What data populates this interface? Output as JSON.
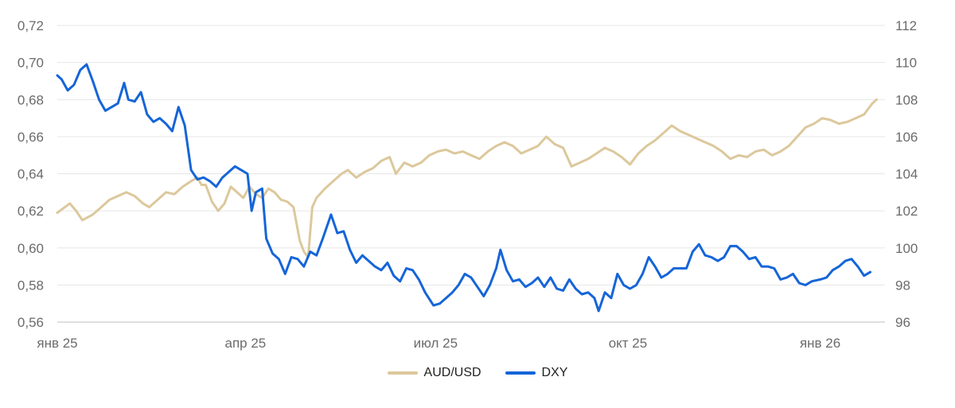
{
  "chart_data": {
    "type": "line",
    "title": "",
    "x_ticks": [
      "янв 25",
      "апр 25",
      "июл 25",
      "окт 25",
      "янв 26"
    ],
    "x_range": [
      "2025-01-01",
      "2026-02-01"
    ],
    "y_left": {
      "ticks": [
        "0,72",
        "0,70",
        "0,68",
        "0,66",
        "0,64",
        "0,62",
        "0,60",
        "0,58",
        "0,56"
      ],
      "range": [
        0.56,
        0.72
      ]
    },
    "y_right": {
      "ticks": [
        "112",
        "110",
        "108",
        "106",
        "104",
        "102",
        "100",
        "98",
        "96"
      ],
      "range": [
        96,
        112
      ]
    },
    "grid": "horizontal",
    "legend_position": "bottom",
    "series": [
      {
        "name": "AUD/USD",
        "axis": "left",
        "color": "#dcc89c",
        "points": [
          [
            "2025-01-01",
            0.619
          ],
          [
            "2025-01-07",
            0.624
          ],
          [
            "2025-01-10",
            0.62
          ],
          [
            "2025-01-13",
            0.615
          ],
          [
            "2025-01-18",
            0.618
          ],
          [
            "2025-01-22",
            0.622
          ],
          [
            "2025-01-26",
            0.626
          ],
          [
            "2025-01-30",
            0.628
          ],
          [
            "2025-02-03",
            0.63
          ],
          [
            "2025-02-07",
            0.628
          ],
          [
            "2025-02-11",
            0.624
          ],
          [
            "2025-02-14",
            0.622
          ],
          [
            "2025-02-18",
            0.626
          ],
          [
            "2025-02-22",
            0.63
          ],
          [
            "2025-02-26",
            0.629
          ],
          [
            "2025-03-02",
            0.633
          ],
          [
            "2025-03-06",
            0.636
          ],
          [
            "2025-03-09",
            0.638
          ],
          [
            "2025-03-11",
            0.634
          ],
          [
            "2025-03-13",
            0.634
          ],
          [
            "2025-03-16",
            0.625
          ],
          [
            "2025-03-19",
            0.62
          ],
          [
            "2025-03-22",
            0.624
          ],
          [
            "2025-03-25",
            0.633
          ],
          [
            "2025-03-28",
            0.63
          ],
          [
            "2025-03-31",
            0.627
          ],
          [
            "2025-04-03",
            0.633
          ],
          [
            "2025-04-06",
            0.629
          ],
          [
            "2025-04-09",
            0.627
          ],
          [
            "2025-04-12",
            0.632
          ],
          [
            "2025-04-15",
            0.63
          ],
          [
            "2025-04-18",
            0.626
          ],
          [
            "2025-04-21",
            0.625
          ],
          [
            "2025-04-24",
            0.622
          ],
          [
            "2025-04-27",
            0.604
          ],
          [
            "2025-04-29",
            0.598
          ],
          [
            "2025-05-01",
            0.595
          ],
          [
            "2025-05-03",
            0.622
          ],
          [
            "2025-05-05",
            0.627
          ],
          [
            "2025-05-09",
            0.632
          ],
          [
            "2025-05-13",
            0.636
          ],
          [
            "2025-05-17",
            0.64
          ],
          [
            "2025-05-20",
            0.642
          ],
          [
            "2025-05-24",
            0.638
          ],
          [
            "2025-05-28",
            0.641
          ],
          [
            "2025-06-01",
            0.643
          ],
          [
            "2025-06-05",
            0.647
          ],
          [
            "2025-06-09",
            0.649
          ],
          [
            "2025-06-12",
            0.64
          ],
          [
            "2025-06-16",
            0.646
          ],
          [
            "2025-06-20",
            0.644
          ],
          [
            "2025-06-24",
            0.646
          ],
          [
            "2025-06-28",
            0.65
          ],
          [
            "2025-07-02",
            0.652
          ],
          [
            "2025-07-06",
            0.653
          ],
          [
            "2025-07-10",
            0.651
          ],
          [
            "2025-07-14",
            0.652
          ],
          [
            "2025-07-18",
            0.65
          ],
          [
            "2025-07-22",
            0.648
          ],
          [
            "2025-07-26",
            0.652
          ],
          [
            "2025-07-30",
            0.655
          ],
          [
            "2025-08-03",
            0.657
          ],
          [
            "2025-08-07",
            0.655
          ],
          [
            "2025-08-11",
            0.651
          ],
          [
            "2025-08-15",
            0.653
          ],
          [
            "2025-08-19",
            0.655
          ],
          [
            "2025-08-23",
            0.66
          ],
          [
            "2025-08-27",
            0.656
          ],
          [
            "2025-08-31",
            0.654
          ],
          [
            "2025-09-04",
            0.644
          ],
          [
            "2025-09-08",
            0.646
          ],
          [
            "2025-09-12",
            0.648
          ],
          [
            "2025-09-16",
            0.651
          ],
          [
            "2025-09-20",
            0.654
          ],
          [
            "2025-09-24",
            0.652
          ],
          [
            "2025-09-28",
            0.649
          ],
          [
            "2025-10-02",
            0.645
          ],
          [
            "2025-10-06",
            0.651
          ],
          [
            "2025-10-10",
            0.655
          ],
          [
            "2025-10-14",
            0.658
          ],
          [
            "2025-10-18",
            0.662
          ],
          [
            "2025-10-22",
            0.666
          ],
          [
            "2025-10-26",
            0.663
          ],
          [
            "2025-10-30",
            0.661
          ],
          [
            "2025-11-03",
            0.659
          ],
          [
            "2025-11-07",
            0.657
          ],
          [
            "2025-11-11",
            0.655
          ],
          [
            "2025-11-15",
            0.652
          ],
          [
            "2025-11-19",
            0.648
          ],
          [
            "2025-11-23",
            0.65
          ],
          [
            "2025-11-27",
            0.649
          ],
          [
            "2025-12-01",
            0.652
          ],
          [
            "2025-12-05",
            0.653
          ],
          [
            "2025-12-09",
            0.65
          ],
          [
            "2025-12-13",
            0.652
          ],
          [
            "2025-12-17",
            0.655
          ],
          [
            "2025-12-21",
            0.66
          ],
          [
            "2025-12-25",
            0.665
          ],
          [
            "2025-12-29",
            0.667
          ],
          [
            "2026-01-02",
            0.67
          ],
          [
            "2026-01-06",
            0.669
          ],
          [
            "2026-01-10",
            0.667
          ],
          [
            "2026-01-14",
            0.668
          ],
          [
            "2026-01-18",
            0.67
          ],
          [
            "2026-01-22",
            0.672
          ],
          [
            "2026-01-26",
            0.678
          ],
          [
            "2026-01-28",
            0.68
          ]
        ]
      },
      {
        "name": "DXY",
        "axis": "right",
        "color": "#1565d8",
        "points": [
          [
            "2025-01-01",
            109.3
          ],
          [
            "2025-01-03",
            109.1
          ],
          [
            "2025-01-06",
            108.5
          ],
          [
            "2025-01-09",
            108.8
          ],
          [
            "2025-01-12",
            109.6
          ],
          [
            "2025-01-15",
            109.9
          ],
          [
            "2025-01-18",
            109.0
          ],
          [
            "2025-01-21",
            108.0
          ],
          [
            "2025-01-24",
            107.4
          ],
          [
            "2025-01-27",
            107.6
          ],
          [
            "2025-01-30",
            107.8
          ],
          [
            "2025-02-02",
            108.9
          ],
          [
            "2025-02-04",
            108.0
          ],
          [
            "2025-02-07",
            107.9
          ],
          [
            "2025-02-10",
            108.4
          ],
          [
            "2025-02-13",
            107.2
          ],
          [
            "2025-02-16",
            106.8
          ],
          [
            "2025-02-19",
            107.0
          ],
          [
            "2025-02-22",
            106.7
          ],
          [
            "2025-02-25",
            106.3
          ],
          [
            "2025-02-28",
            107.6
          ],
          [
            "2025-03-03",
            106.6
          ],
          [
            "2025-03-06",
            104.2
          ],
          [
            "2025-03-09",
            103.7
          ],
          [
            "2025-03-12",
            103.8
          ],
          [
            "2025-03-15",
            103.6
          ],
          [
            "2025-03-18",
            103.3
          ],
          [
            "2025-03-21",
            103.8
          ],
          [
            "2025-03-24",
            104.1
          ],
          [
            "2025-03-27",
            104.4
          ],
          [
            "2025-03-30",
            104.2
          ],
          [
            "2025-04-02",
            104.0
          ],
          [
            "2025-04-04",
            102.0
          ],
          [
            "2025-04-06",
            103.0
          ],
          [
            "2025-04-09",
            103.2
          ],
          [
            "2025-04-11",
            100.5
          ],
          [
            "2025-04-14",
            99.7
          ],
          [
            "2025-04-17",
            99.4
          ],
          [
            "2025-04-20",
            98.6
          ],
          [
            "2025-04-23",
            99.5
          ],
          [
            "2025-04-26",
            99.4
          ],
          [
            "2025-04-29",
            99.0
          ],
          [
            "2025-05-02",
            99.8
          ],
          [
            "2025-05-05",
            99.6
          ],
          [
            "2025-05-08",
            100.5
          ],
          [
            "2025-05-12",
            101.8
          ],
          [
            "2025-05-15",
            100.8
          ],
          [
            "2025-05-18",
            100.9
          ],
          [
            "2025-05-21",
            99.9
          ],
          [
            "2025-05-24",
            99.2
          ],
          [
            "2025-05-27",
            99.6
          ],
          [
            "2025-05-30",
            99.3
          ],
          [
            "2025-06-02",
            99.0
          ],
          [
            "2025-06-05",
            98.8
          ],
          [
            "2025-06-08",
            99.2
          ],
          [
            "2025-06-11",
            98.5
          ],
          [
            "2025-06-14",
            98.2
          ],
          [
            "2025-06-17",
            98.9
          ],
          [
            "2025-06-20",
            98.8
          ],
          [
            "2025-06-23",
            98.3
          ],
          [
            "2025-06-26",
            97.6
          ],
          [
            "2025-06-30",
            96.9
          ],
          [
            "2025-07-03",
            97.0
          ],
          [
            "2025-07-06",
            97.3
          ],
          [
            "2025-07-09",
            97.6
          ],
          [
            "2025-07-12",
            98.0
          ],
          [
            "2025-07-15",
            98.6
          ],
          [
            "2025-07-18",
            98.4
          ],
          [
            "2025-07-21",
            97.9
          ],
          [
            "2025-07-24",
            97.4
          ],
          [
            "2025-07-27",
            98.0
          ],
          [
            "2025-07-30",
            98.9
          ],
          [
            "2025-08-01",
            99.9
          ],
          [
            "2025-08-04",
            98.8
          ],
          [
            "2025-08-07",
            98.2
          ],
          [
            "2025-08-10",
            98.3
          ],
          [
            "2025-08-13",
            97.9
          ],
          [
            "2025-08-16",
            98.1
          ],
          [
            "2025-08-19",
            98.4
          ],
          [
            "2025-08-22",
            97.9
          ],
          [
            "2025-08-25",
            98.4
          ],
          [
            "2025-08-28",
            97.8
          ],
          [
            "2025-08-31",
            97.7
          ],
          [
            "2025-09-03",
            98.3
          ],
          [
            "2025-09-06",
            97.8
          ],
          [
            "2025-09-09",
            97.5
          ],
          [
            "2025-09-12",
            97.6
          ],
          [
            "2025-09-15",
            97.3
          ],
          [
            "2025-09-17",
            96.6
          ],
          [
            "2025-09-20",
            97.6
          ],
          [
            "2025-09-23",
            97.3
          ],
          [
            "2025-09-26",
            98.6
          ],
          [
            "2025-09-29",
            98.0
          ],
          [
            "2025-10-02",
            97.8
          ],
          [
            "2025-10-05",
            98.0
          ],
          [
            "2025-10-08",
            98.6
          ],
          [
            "2025-10-11",
            99.5
          ],
          [
            "2025-10-14",
            99.0
          ],
          [
            "2025-10-17",
            98.4
          ],
          [
            "2025-10-20",
            98.6
          ],
          [
            "2025-10-23",
            98.9
          ],
          [
            "2025-10-26",
            98.9
          ],
          [
            "2025-10-29",
            98.9
          ],
          [
            "2025-11-01",
            99.8
          ],
          [
            "2025-11-04",
            100.2
          ],
          [
            "2025-11-07",
            99.6
          ],
          [
            "2025-11-10",
            99.5
          ],
          [
            "2025-11-13",
            99.3
          ],
          [
            "2025-11-16",
            99.5
          ],
          [
            "2025-11-19",
            100.1
          ],
          [
            "2025-11-22",
            100.1
          ],
          [
            "2025-11-25",
            99.8
          ],
          [
            "2025-11-28",
            99.4
          ],
          [
            "2025-12-01",
            99.5
          ],
          [
            "2025-12-04",
            99.0
          ],
          [
            "2025-12-07",
            99.0
          ],
          [
            "2025-12-10",
            98.9
          ],
          [
            "2025-12-13",
            98.3
          ],
          [
            "2025-12-16",
            98.4
          ],
          [
            "2025-12-19",
            98.6
          ],
          [
            "2025-12-22",
            98.1
          ],
          [
            "2025-12-25",
            98.0
          ],
          [
            "2025-12-28",
            98.2
          ],
          [
            "2026-01-01",
            98.3
          ],
          [
            "2026-01-04",
            98.4
          ],
          [
            "2026-01-07",
            98.8
          ],
          [
            "2026-01-10",
            99.0
          ],
          [
            "2026-01-13",
            99.3
          ],
          [
            "2026-01-16",
            99.4
          ],
          [
            "2026-01-19",
            99.0
          ],
          [
            "2026-01-22",
            98.5
          ],
          [
            "2026-01-25",
            98.7
          ]
        ]
      }
    ]
  }
}
